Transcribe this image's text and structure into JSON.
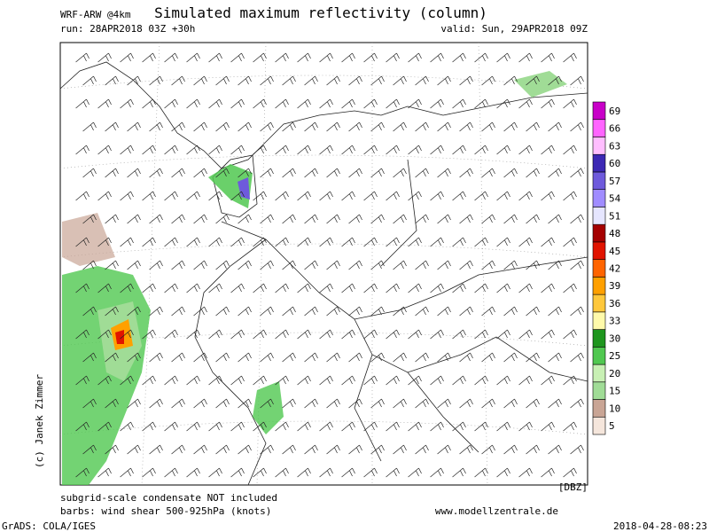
{
  "header": {
    "model": "WRF-ARW @4km",
    "title": "Simulated maximum reflectivity (column)",
    "run": "run: 28APR2018 03Z +30h",
    "valid": "valid: Sun, 29APR2018 09Z"
  },
  "copyright": "(c) Janek Zimmer",
  "colorbar": {
    "unit": "[DBZ]",
    "levels": [
      5,
      10,
      15,
      20,
      25,
      30,
      33,
      36,
      39,
      42,
      45,
      48,
      51,
      54,
      57,
      60,
      63,
      66,
      69
    ],
    "colors": [
      "#f5e6dc",
      "#c9a595",
      "#a0dc96",
      "#c8f0b4",
      "#50c850",
      "#1e961e",
      "#fffaaa",
      "#ffc83c",
      "#ffa000",
      "#ff6400",
      "#e11400",
      "#a50000",
      "#e6e6ff",
      "#a08cff",
      "#6e5adc",
      "#3c28b4",
      "#ffbeff",
      "#ff64ff",
      "#c800c8"
    ]
  },
  "footer": {
    "note": "subgrid-scale condensate NOT included",
    "barbs": "barbs: wind shear 500-925hPa (knots)",
    "website": "www.modellzentrale.de",
    "software": "GrADS: COLA/IGES",
    "timestamp": "2018-04-28-08:23"
  }
}
